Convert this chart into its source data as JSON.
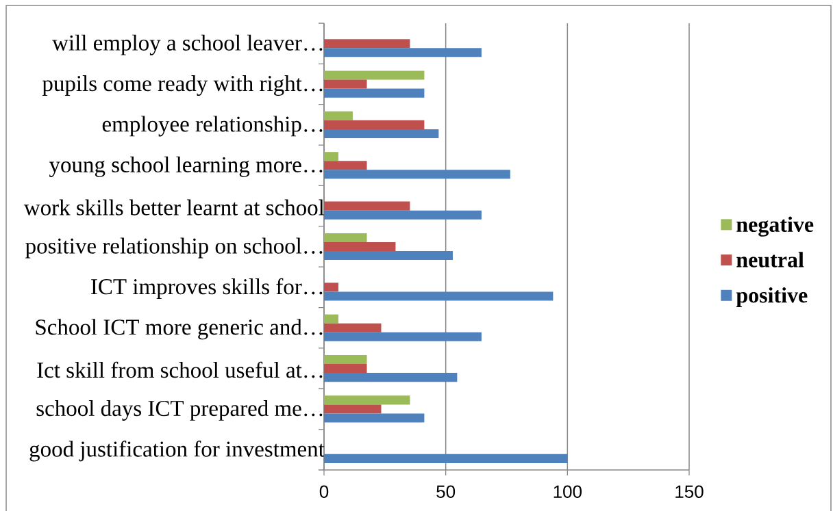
{
  "chart_data": {
    "type": "bar",
    "orientation": "horizontal",
    "categories": [
      "will employ a school leaver…",
      "pupils come ready with right…",
      "employee relationship…",
      "young school learning more…",
      "work skills better learnt at school",
      "positive relationship on school…",
      "ICT improves skills for…",
      "School ICT more generic and…",
      "Ict skill from school useful at…",
      "school days ICT prepared me…",
      "good justification for investment"
    ],
    "series": [
      {
        "name": "negative",
        "color": "#9bbb59",
        "values": [
          0,
          41.2,
          11.8,
          5.9,
          0,
          17.6,
          0,
          5.9,
          17.6,
          35.3,
          0
        ]
      },
      {
        "name": "neutral",
        "color": "#c0504d",
        "values": [
          35.3,
          17.6,
          41.2,
          17.6,
          35.3,
          29.4,
          5.9,
          23.5,
          17.6,
          23.5,
          0
        ]
      },
      {
        "name": "positive",
        "color": "#4f81bd",
        "values": [
          64.7,
          41.2,
          47.1,
          76.5,
          64.7,
          52.9,
          94.1,
          64.7,
          54.7,
          41.2,
          100
        ]
      }
    ],
    "xlim": [
      0,
      150
    ],
    "xticks": [
      0,
      50,
      100,
      150
    ],
    "grid": "x",
    "legend": "right"
  }
}
